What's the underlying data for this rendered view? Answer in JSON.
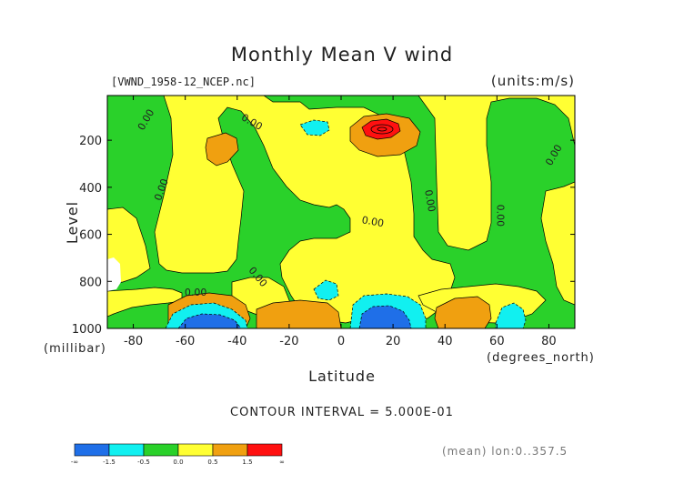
{
  "chart_data": {
    "type": "heatmap",
    "title": "Monthly Mean V wind",
    "dataset_label": "[VWND_1958-12_NCEP.nc]",
    "units_label": "(units:m/s)",
    "xlabel": "Latitude",
    "x_unit_label": "(degrees_north)",
    "ylabel": "Level",
    "y_unit_label": "(millibar)",
    "x_ticks": [
      -80,
      -60,
      -40,
      -20,
      0,
      20,
      40,
      60,
      80
    ],
    "y_ticks": [
      200,
      400,
      600,
      800,
      1000
    ],
    "xlim": [
      -90,
      90
    ],
    "ylim": [
      1000,
      10
    ],
    "contour_interval_text": "CONTOUR INTERVAL = 5.000E-01",
    "contour_labels": [
      "0.00",
      "0.00",
      "0.00",
      "0.00",
      "0.00",
      "0.00",
      "0.00",
      "0.00",
      "0.00"
    ],
    "colorbar": {
      "colors": [
        "#1f6fe8",
        "#11f0f0",
        "#2ad12a",
        "#ffff33",
        "#f0a010",
        "#ff1010"
      ],
      "tick_labels": [
        "-∞",
        "-1.5",
        "-0.5",
        "0.0",
        "0.5",
        "1.5",
        "∞"
      ]
    },
    "footnote": "(mean) lon:0..357.5"
  }
}
